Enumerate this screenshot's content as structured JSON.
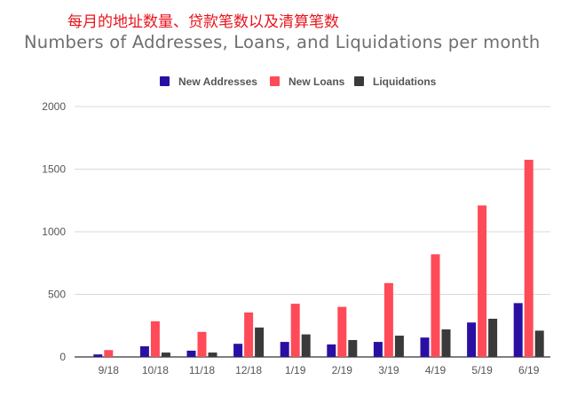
{
  "header": {
    "cn_title": "每月的地址数量、贷款笔数以及清算笔数",
    "title": "Numbers of Addresses, Loans, and Liquidations per month"
  },
  "chart_data": {
    "type": "bar",
    "title": "Numbers of Addresses, Loans, and Liquidations per month",
    "xlabel": "",
    "ylabel": "",
    "categories": [
      "9/18",
      "10/18",
      "11/18",
      "12/18",
      "1/19",
      "2/19",
      "3/19",
      "4/19",
      "5/19",
      "6/19"
    ],
    "series": [
      {
        "name": "New Addresses",
        "color": "#2b0fa3",
        "values": [
          20,
          85,
          50,
          105,
          120,
          100,
          120,
          155,
          275,
          430
        ]
      },
      {
        "name": "New Loans",
        "color": "#ff4a58",
        "values": [
          55,
          285,
          200,
          355,
          425,
          400,
          590,
          820,
          1210,
          1575
        ]
      },
      {
        "name": "Liquidations",
        "color": "#3a3a3a",
        "values": [
          0,
          35,
          35,
          235,
          180,
          135,
          170,
          220,
          305,
          210
        ]
      }
    ],
    "ylim": [
      0,
      2000
    ],
    "yticks": [
      0,
      500,
      1000,
      1500,
      2000
    ],
    "grid": true,
    "legend_position": "top-center"
  }
}
